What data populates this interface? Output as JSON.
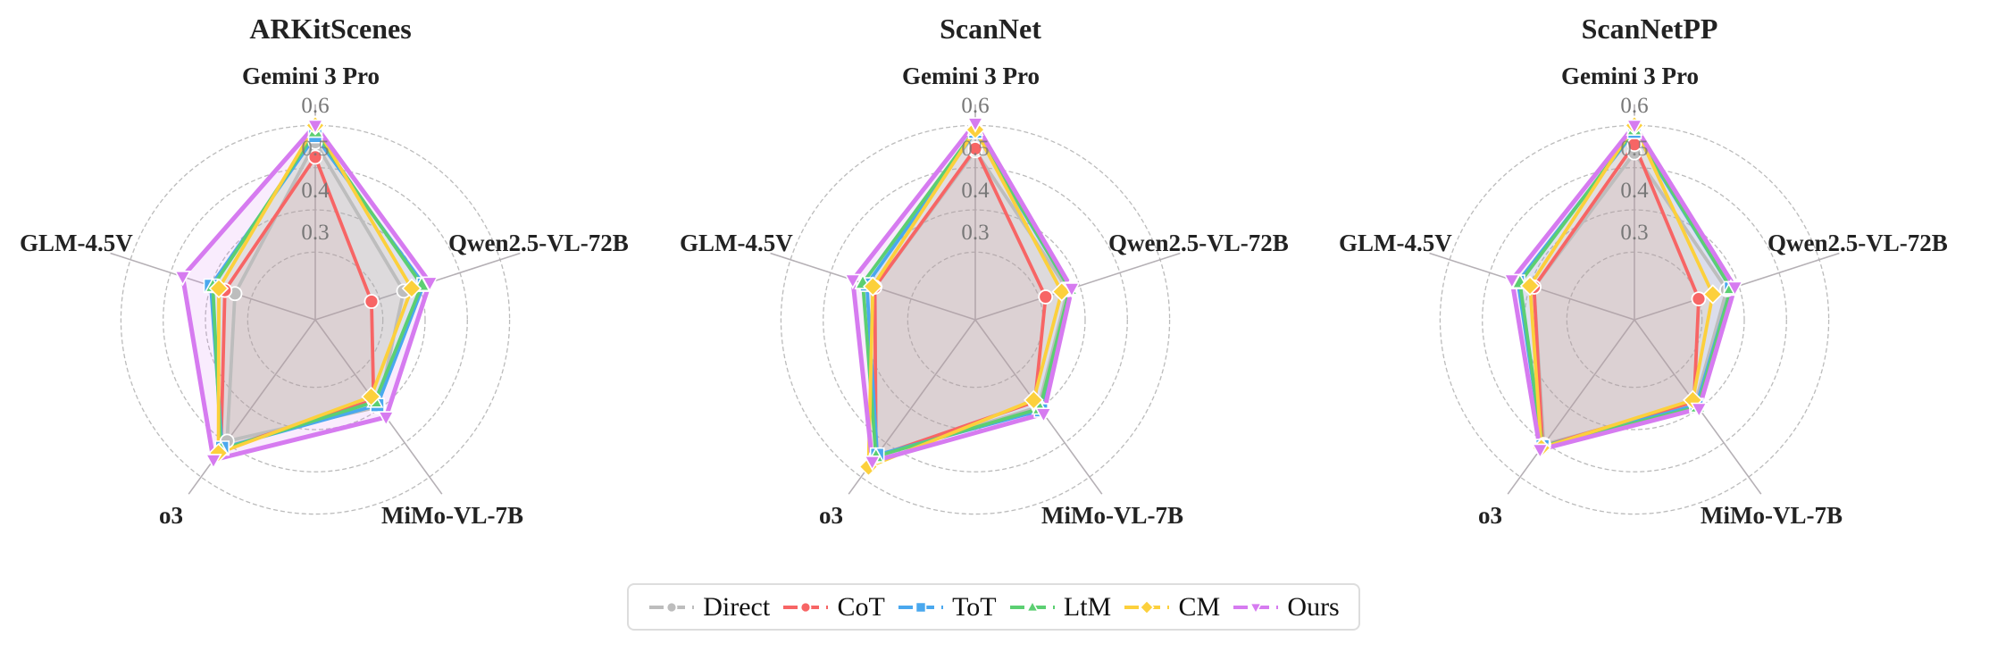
{
  "chart_data": [
    {
      "type": "radar",
      "title": "ARKitScenes",
      "axes": [
        "Gemini 3 Pro",
        "Qwen2.5-VL-72B",
        "MiMo-VL-7B",
        "o3",
        "GLM-4.5V"
      ],
      "rticks": [
        0.3,
        0.4,
        0.5,
        0.6
      ],
      "rtick_labels": [
        "0.3",
        "0.4",
        "0.5",
        "0.6"
      ],
      "rlim": [
        0.14,
        0.65
      ],
      "grid": true,
      "series": [
        {
          "name": "Direct",
          "values": [
            0.56,
            0.36,
            0.395,
            0.495,
            0.34
          ]
        },
        {
          "name": "CoT",
          "values": [
            0.525,
            0.28,
            0.375,
            0.52,
            0.365
          ]
        },
        {
          "name": "ToT",
          "values": [
            0.575,
            0.41,
            0.39,
            0.515,
            0.4
          ]
        },
        {
          "name": "LtM",
          "values": [
            0.585,
            0.405,
            0.38,
            0.52,
            0.395
          ]
        },
        {
          "name": "CM",
          "values": [
            0.6,
            0.38,
            0.365,
            0.53,
            0.38
          ]
        },
        {
          "name": "Ours",
          "values": [
            0.6,
            0.425,
            0.425,
            0.55,
            0.47
          ]
        }
      ]
    },
    {
      "type": "radar",
      "title": "ScanNet",
      "axes": [
        "Gemini 3 Pro",
        "Qwen2.5-VL-72B",
        "MiMo-VL-7B",
        "o3",
        "GLM-4.5V"
      ],
      "rticks": [
        0.3,
        0.4,
        0.5,
        0.6
      ],
      "rtick_labels": [
        "0.3",
        "0.4",
        "0.5",
        "0.6"
      ],
      "rlim": [
        0.14,
        0.65
      ],
      "grid": true,
      "series": [
        {
          "name": "Direct",
          "values": [
            0.54,
            0.37,
            0.395,
            0.54,
            0.39
          ]
        },
        {
          "name": "CoT",
          "values": [
            0.545,
            0.315,
            0.38,
            0.54,
            0.39
          ]
        },
        {
          "name": "ToT",
          "values": [
            0.585,
            0.375,
            0.405,
            0.535,
            0.41
          ]
        },
        {
          "name": "LtM",
          "values": [
            0.59,
            0.375,
            0.4,
            0.54,
            0.42
          ]
        },
        {
          "name": "CM",
          "values": [
            0.59,
            0.355,
            0.375,
            0.57,
            0.395
          ]
        },
        {
          "name": "Ours",
          "values": [
            0.605,
            0.38,
            0.415,
            0.555,
            0.445
          ]
        }
      ]
    },
    {
      "type": "radar",
      "title": "ScanNetPP",
      "axes": [
        "Gemini 3 Pro",
        "Qwen2.5-VL-72B",
        "MiMo-VL-7B",
        "o3",
        "GLM-4.5V"
      ],
      "rticks": [
        0.3,
        0.4,
        0.5,
        0.6
      ],
      "rtick_labels": [
        "0.3",
        "0.4",
        "0.5",
        "0.6"
      ],
      "rlim": [
        0.14,
        0.65
      ],
      "grid": true,
      "series": [
        {
          "name": "Direct",
          "values": [
            0.535,
            0.37,
            0.385,
            0.505,
            0.39
          ]
        },
        {
          "name": "CoT",
          "values": [
            0.555,
            0.3,
            0.38,
            0.51,
            0.39
          ]
        },
        {
          "name": "ToT",
          "values": [
            0.585,
            0.38,
            0.39,
            0.51,
            0.43
          ]
        },
        {
          "name": "LtM",
          "values": [
            0.59,
            0.38,
            0.395,
            0.51,
            0.425
          ]
        },
        {
          "name": "CM",
          "values": [
            0.6,
            0.335,
            0.375,
            0.515,
            0.4
          ]
        },
        {
          "name": "Ours",
          "values": [
            0.6,
            0.39,
            0.4,
            0.52,
            0.445
          ]
        }
      ]
    }
  ],
  "legend": {
    "position": "bottom-center",
    "items": [
      {
        "name": "Direct",
        "color": "#bdbdbd",
        "marker": "circle"
      },
      {
        "name": "CoT",
        "color": "#f76565",
        "marker": "circle"
      },
      {
        "name": "ToT",
        "color": "#4aa8ee",
        "marker": "square"
      },
      {
        "name": "LtM",
        "color": "#5ccf72",
        "marker": "triangle-up"
      },
      {
        "name": "CM",
        "color": "#fcd03c",
        "marker": "diamond"
      },
      {
        "name": "Ours",
        "color": "#d67bf0",
        "marker": "triangle-down"
      }
    ]
  },
  "panels": [
    {
      "title": "ARKitScenes"
    },
    {
      "title": "ScanNet"
    },
    {
      "title": "ScanNetPP"
    }
  ],
  "axis_labels": [
    "Gemini 3 Pro",
    "Qwen2.5-VL-72B",
    "MiMo-VL-7B",
    "o3",
    "GLM-4.5V"
  ]
}
